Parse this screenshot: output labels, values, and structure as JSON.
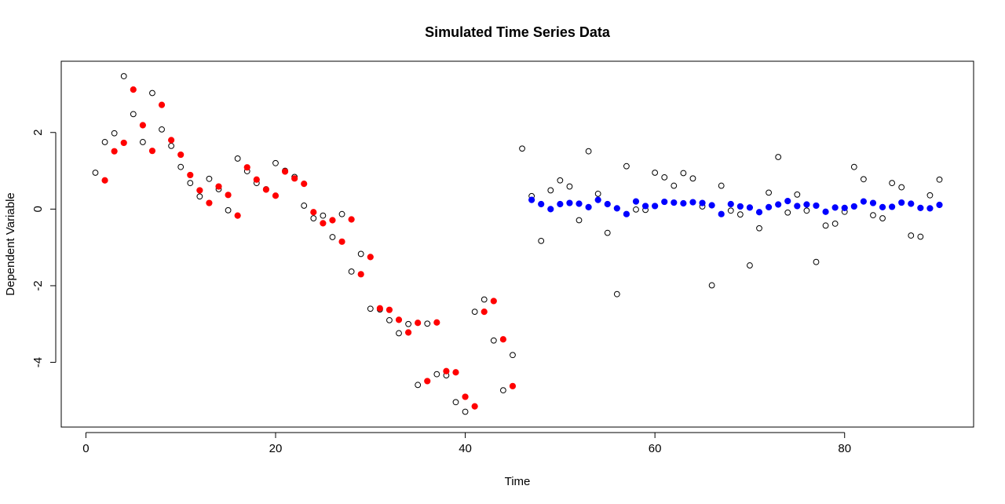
{
  "chart_data": {
    "type": "scatter",
    "title": "Simulated Time Series Data",
    "xlabel": "Time",
    "ylabel": "Dependent Variable",
    "xlim": [
      -2.6,
      93.6
    ],
    "ylim": [
      -5.69,
      3.86
    ],
    "x_ticks": [
      0,
      20,
      40,
      60,
      80
    ],
    "y_ticks": [
      -4,
      -2,
      0,
      2
    ],
    "grid": false,
    "legend": "none",
    "series": [
      {
        "style": "open-circle",
        "color": "#000000",
        "points": [
          [
            1,
            0.95
          ],
          [
            2,
            1.75
          ],
          [
            3,
            1.98
          ],
          [
            4,
            3.47
          ],
          [
            5,
            2.48
          ],
          [
            6,
            1.75
          ],
          [
            7,
            3.03
          ],
          [
            8,
            2.08
          ],
          [
            9,
            1.65
          ],
          [
            10,
            1.1
          ],
          [
            11,
            0.68
          ],
          [
            12,
            0.33
          ],
          [
            13,
            0.79
          ],
          [
            14,
            0.52
          ],
          [
            15,
            -0.03
          ],
          [
            16,
            1.32
          ],
          [
            17,
            0.99
          ],
          [
            18,
            0.68
          ],
          [
            19,
            0.52
          ],
          [
            20,
            1.2
          ],
          [
            21,
            1.0
          ],
          [
            22,
            0.84
          ],
          [
            23,
            0.09
          ],
          [
            24,
            -0.24
          ],
          [
            25,
            -0.17
          ],
          [
            26,
            -0.73
          ],
          [
            27,
            -0.13
          ],
          [
            28,
            -1.63
          ],
          [
            29,
            -1.17
          ],
          [
            30,
            -2.6
          ],
          [
            31,
            -2.62
          ],
          [
            32,
            -2.9
          ],
          [
            33,
            -3.24
          ],
          [
            34,
            -3.0
          ],
          [
            35,
            -4.59
          ],
          [
            36,
            -2.99
          ],
          [
            37,
            -4.31
          ],
          [
            38,
            -4.34
          ],
          [
            39,
            -5.04
          ],
          [
            40,
            -5.29
          ],
          [
            41,
            -2.68
          ],
          [
            42,
            -2.36
          ],
          [
            43,
            -3.43
          ],
          [
            44,
            -4.73
          ],
          [
            45,
            -3.81
          ],
          [
            46,
            1.58
          ],
          [
            47,
            0.34
          ],
          [
            48,
            -0.83
          ],
          [
            49,
            0.49
          ],
          [
            50,
            0.75
          ],
          [
            51,
            0.59
          ],
          [
            52,
            -0.29
          ],
          [
            53,
            1.51
          ],
          [
            54,
            0.4
          ],
          [
            55,
            -0.62
          ],
          [
            56,
            -2.22
          ],
          [
            57,
            1.12
          ],
          [
            58,
            -0.01
          ],
          [
            59,
            -0.02
          ],
          [
            60,
            0.95
          ],
          [
            61,
            0.83
          ],
          [
            62,
            0.61
          ],
          [
            63,
            0.94
          ],
          [
            64,
            0.8
          ],
          [
            65,
            0.07
          ],
          [
            66,
            -1.99
          ],
          [
            67,
            0.61
          ],
          [
            68,
            -0.04
          ],
          [
            69,
            -0.14
          ],
          [
            70,
            -1.47
          ],
          [
            71,
            -0.5
          ],
          [
            72,
            0.43
          ],
          [
            73,
            1.36
          ],
          [
            74,
            -0.09
          ],
          [
            75,
            0.38
          ],
          [
            76,
            -0.04
          ],
          [
            77,
            -1.38
          ],
          [
            78,
            -0.43
          ],
          [
            79,
            -0.38
          ],
          [
            80,
            -0.07
          ],
          [
            81,
            1.1
          ],
          [
            82,
            0.78
          ],
          [
            83,
            -0.16
          ],
          [
            84,
            -0.24
          ],
          [
            85,
            0.68
          ],
          [
            86,
            0.57
          ],
          [
            87,
            -0.69
          ],
          [
            88,
            -0.72
          ],
          [
            89,
            0.36
          ],
          [
            90,
            0.77
          ]
        ]
      },
      {
        "style": "filled-circle",
        "color": "#ff0000",
        "points": [
          [
            2,
            0.75
          ],
          [
            3,
            1.51
          ],
          [
            4,
            1.73
          ],
          [
            5,
            3.12
          ],
          [
            6,
            2.19
          ],
          [
            7,
            1.52
          ],
          [
            8,
            2.72
          ],
          [
            9,
            1.8
          ],
          [
            10,
            1.42
          ],
          [
            11,
            0.89
          ],
          [
            12,
            0.49
          ],
          [
            13,
            0.16
          ],
          [
            14,
            0.59
          ],
          [
            15,
            0.37
          ],
          [
            16,
            -0.17
          ],
          [
            17,
            1.09
          ],
          [
            18,
            0.77
          ],
          [
            19,
            0.51
          ],
          [
            20,
            0.35
          ],
          [
            21,
            0.98
          ],
          [
            22,
            0.8
          ],
          [
            23,
            0.66
          ],
          [
            24,
            -0.08
          ],
          [
            25,
            -0.37
          ],
          [
            26,
            -0.29
          ],
          [
            27,
            -0.85
          ],
          [
            28,
            -0.27
          ],
          [
            29,
            -1.7
          ],
          [
            30,
            -1.25
          ],
          [
            31,
            -2.59
          ],
          [
            32,
            -2.63
          ],
          [
            33,
            -2.89
          ],
          [
            34,
            -3.22
          ],
          [
            35,
            -2.97
          ],
          [
            36,
            -4.49
          ],
          [
            37,
            -2.96
          ],
          [
            38,
            -4.23
          ],
          [
            39,
            -4.26
          ],
          [
            40,
            -4.9
          ],
          [
            41,
            -5.15
          ],
          [
            42,
            -2.68
          ],
          [
            43,
            -2.4
          ],
          [
            44,
            -3.4
          ],
          [
            45,
            -4.62
          ]
        ]
      },
      {
        "style": "filled-circle",
        "color": "#0000ff",
        "points": [
          [
            47,
            0.24
          ],
          [
            48,
            0.13
          ],
          [
            49,
            0.0
          ],
          [
            50,
            0.13
          ],
          [
            51,
            0.16
          ],
          [
            52,
            0.14
          ],
          [
            53,
            0.05
          ],
          [
            54,
            0.24
          ],
          [
            55,
            0.13
          ],
          [
            56,
            0.02
          ],
          [
            57,
            -0.13
          ],
          [
            58,
            0.2
          ],
          [
            59,
            0.08
          ],
          [
            60,
            0.08
          ],
          [
            61,
            0.19
          ],
          [
            62,
            0.17
          ],
          [
            63,
            0.15
          ],
          [
            64,
            0.18
          ],
          [
            65,
            0.16
          ],
          [
            66,
            0.1
          ],
          [
            67,
            -0.13
          ],
          [
            68,
            0.13
          ],
          [
            69,
            0.07
          ],
          [
            70,
            0.04
          ],
          [
            71,
            -0.08
          ],
          [
            72,
            0.05
          ],
          [
            73,
            0.12
          ],
          [
            74,
            0.21
          ],
          [
            75,
            0.08
          ],
          [
            76,
            0.12
          ],
          [
            77,
            0.09
          ],
          [
            78,
            -0.07
          ],
          [
            79,
            0.04
          ],
          [
            80,
            0.03
          ],
          [
            81,
            0.07
          ],
          [
            82,
            0.2
          ],
          [
            83,
            0.16
          ],
          [
            84,
            0.05
          ],
          [
            85,
            0.06
          ],
          [
            86,
            0.17
          ],
          [
            87,
            0.14
          ],
          [
            88,
            0.03
          ],
          [
            89,
            0.02
          ],
          [
            90,
            0.11
          ]
        ]
      }
    ]
  }
}
